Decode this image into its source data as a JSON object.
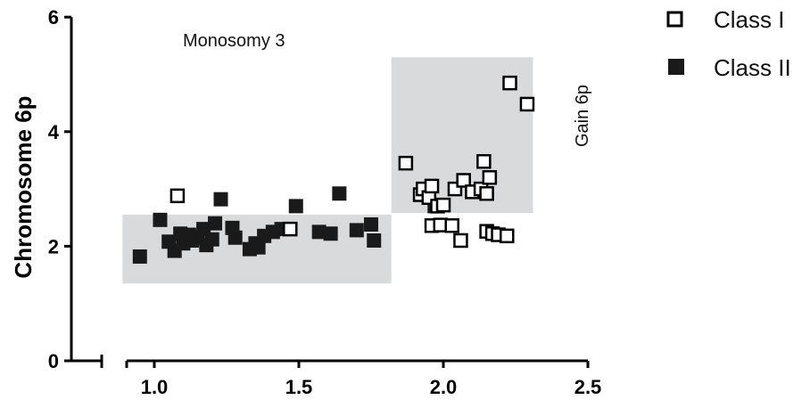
{
  "chart_data": {
    "type": "scatter",
    "title": "",
    "xlabel": "",
    "ylabel": "Chromosome 6p",
    "xlim": [
      0.8,
      2.5
    ],
    "ylim": [
      0,
      6
    ],
    "x_ticks": [
      1.0,
      1.5,
      2.0,
      2.5
    ],
    "x_tick_labels": [
      "1.0",
      "1.5",
      "2.0",
      "2.5"
    ],
    "y_ticks": [
      0,
      2,
      4,
      6
    ],
    "y_tick_labels": [
      "0",
      "2",
      "4",
      "6"
    ],
    "grid": false,
    "legend_position": "top-right",
    "annotations": [
      {
        "text": "Monosomy 3"
      },
      {
        "text": "Gain 6p"
      }
    ],
    "regions": [
      {
        "x": [
          0.89,
          1.82
        ],
        "y": [
          1.35,
          2.55
        ],
        "color": "#d9dadb"
      },
      {
        "x": [
          1.82,
          2.31
        ],
        "y": [
          2.58,
          5.3
        ],
        "color": "#d9dadb"
      }
    ],
    "series": [
      {
        "name": "Class I",
        "marker": "open-square",
        "color": "#000000",
        "points": [
          [
            1.08,
            2.88
          ],
          [
            1.47,
            2.3
          ],
          [
            1.87,
            3.45
          ],
          [
            1.92,
            2.9
          ],
          [
            1.93,
            3.0
          ],
          [
            1.95,
            2.85
          ],
          [
            1.96,
            3.05
          ],
          [
            1.98,
            2.7
          ],
          [
            2.0,
            2.72
          ],
          [
            2.04,
            3.0
          ],
          [
            2.07,
            3.15
          ],
          [
            2.1,
            2.95
          ],
          [
            2.13,
            3.0
          ],
          [
            2.14,
            3.48
          ],
          [
            2.15,
            2.92
          ],
          [
            2.16,
            3.2
          ],
          [
            1.96,
            2.36
          ],
          [
            1.99,
            2.37
          ],
          [
            2.03,
            2.36
          ],
          [
            2.06,
            2.1
          ],
          [
            2.15,
            2.26
          ],
          [
            2.17,
            2.22
          ],
          [
            2.19,
            2.2
          ],
          [
            2.22,
            2.18
          ],
          [
            2.23,
            4.85
          ],
          [
            2.29,
            4.48
          ]
        ]
      },
      {
        "name": "Class II",
        "marker": "filled-square",
        "color": "#1a1a1a",
        "points": [
          [
            0.95,
            1.82
          ],
          [
            1.02,
            2.46
          ],
          [
            1.05,
            2.08
          ],
          [
            1.07,
            1.92
          ],
          [
            1.09,
            2.22
          ],
          [
            1.1,
            2.05
          ],
          [
            1.12,
            2.2
          ],
          [
            1.13,
            2.1
          ],
          [
            1.15,
            2.15
          ],
          [
            1.17,
            2.3
          ],
          [
            1.18,
            2.02
          ],
          [
            1.2,
            2.12
          ],
          [
            1.21,
            2.4
          ],
          [
            1.23,
            2.82
          ],
          [
            1.27,
            2.32
          ],
          [
            1.28,
            2.15
          ],
          [
            1.33,
            1.95
          ],
          [
            1.35,
            2.05
          ],
          [
            1.36,
            1.98
          ],
          [
            1.38,
            2.18
          ],
          [
            1.41,
            2.25
          ],
          [
            1.44,
            2.3
          ],
          [
            1.49,
            2.7
          ],
          [
            1.57,
            2.25
          ],
          [
            1.61,
            2.22
          ],
          [
            1.64,
            2.92
          ],
          [
            1.7,
            2.28
          ],
          [
            1.75,
            2.38
          ],
          [
            1.76,
            2.1
          ],
          [
            1.97,
            2.7
          ]
        ]
      }
    ]
  }
}
